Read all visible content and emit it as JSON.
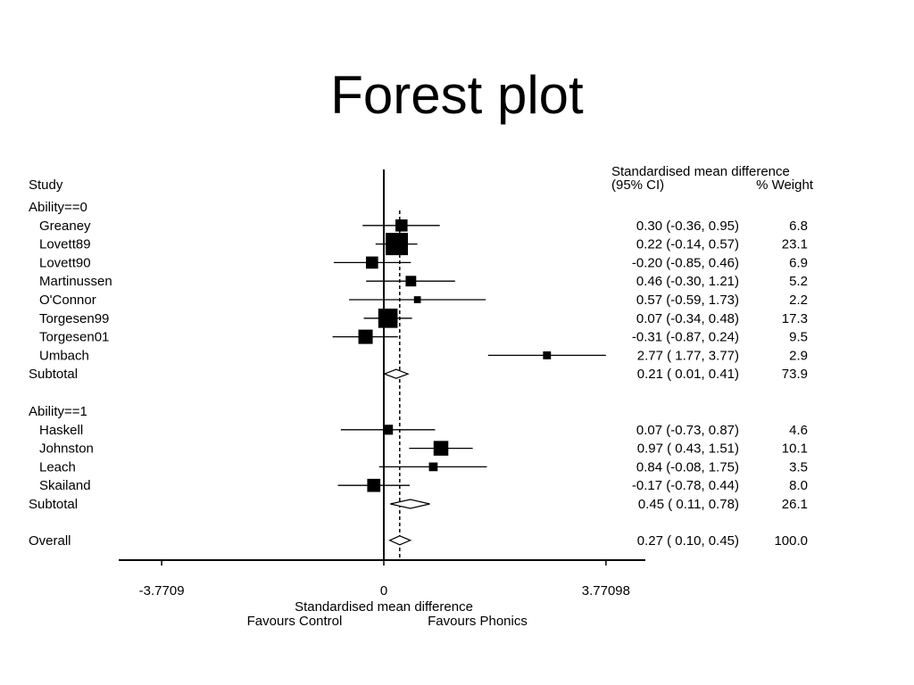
{
  "title": "Forest plot",
  "chart_data": {
    "type": "forest",
    "header": {
      "study": "Study",
      "effect": "Standardised mean difference",
      "ci": "(95% CI)",
      "weight": "% Weight"
    },
    "groups": [
      {
        "label": "Ability==0",
        "studies": [
          {
            "name": "Greaney",
            "est": 0.3,
            "lo": -0.36,
            "hi": 0.95,
            "ci_text": "0.30 (-0.36, 0.95)",
            "weight": "6.8"
          },
          {
            "name": "Lovett89",
            "est": 0.22,
            "lo": -0.14,
            "hi": 0.57,
            "ci_text": "0.22 (-0.14, 0.57)",
            "weight": "23.1"
          },
          {
            "name": "Lovett90",
            "est": -0.2,
            "lo": -0.85,
            "hi": 0.46,
            "ci_text": "-0.20 (-0.85, 0.46)",
            "weight": "6.9"
          },
          {
            "name": "Martinussen",
            "est": 0.46,
            "lo": -0.3,
            "hi": 1.21,
            "ci_text": "0.46 (-0.30, 1.21)",
            "weight": "5.2"
          },
          {
            "name": "O'Connor",
            "est": 0.57,
            "lo": -0.59,
            "hi": 1.73,
            "ci_text": "0.57 (-0.59, 1.73)",
            "weight": "2.2"
          },
          {
            "name": "Torgesen99",
            "est": 0.07,
            "lo": -0.34,
            "hi": 0.48,
            "ci_text": "0.07 (-0.34, 0.48)",
            "weight": "17.3"
          },
          {
            "name": "Torgesen01",
            "est": -0.31,
            "lo": -0.87,
            "hi": 0.24,
            "ci_text": "-0.31 (-0.87, 0.24)",
            "weight": "9.5"
          },
          {
            "name": "Umbach",
            "est": 2.77,
            "lo": 1.77,
            "hi": 3.77,
            "ci_text": "2.77 ( 1.77, 3.77)",
            "weight": "2.9"
          }
        ],
        "subtotal": {
          "name": "Subtotal",
          "est": 0.21,
          "lo": 0.01,
          "hi": 0.41,
          "ci_text": "0.21 ( 0.01, 0.41)",
          "weight": "73.9"
        }
      },
      {
        "label": "Ability==1",
        "studies": [
          {
            "name": "Haskell",
            "est": 0.07,
            "lo": -0.73,
            "hi": 0.87,
            "ci_text": "0.07 (-0.73, 0.87)",
            "weight": "4.6"
          },
          {
            "name": "Johnston",
            "est": 0.97,
            "lo": 0.43,
            "hi": 1.51,
            "ci_text": "0.97 ( 0.43, 1.51)",
            "weight": "10.1"
          },
          {
            "name": "Leach",
            "est": 0.84,
            "lo": -0.08,
            "hi": 1.75,
            "ci_text": "0.84 (-0.08, 1.75)",
            "weight": "3.5"
          },
          {
            "name": "Skailand",
            "est": -0.17,
            "lo": -0.78,
            "hi": 0.44,
            "ci_text": "-0.17 (-0.78, 0.44)",
            "weight": "8.0"
          }
        ],
        "subtotal": {
          "name": "Subtotal",
          "est": 0.45,
          "lo": 0.11,
          "hi": 0.78,
          "ci_text": "0.45 ( 0.11, 0.78)",
          "weight": "26.1"
        }
      }
    ],
    "overall": {
      "name": "Overall",
      "est": 0.27,
      "lo": 0.1,
      "hi": 0.45,
      "ci_text": "0.27 ( 0.10, 0.45)",
      "weight": "100.0"
    },
    "x_ticks": [
      {
        "value": -3.7709,
        "label": "-3.7709"
      },
      {
        "value": 0,
        "label": "0"
      },
      {
        "value": 3.77098,
        "label": "3.77098"
      }
    ],
    "xlim": [
      -4.4,
      4.4
    ],
    "xlabel": "Standardised mean difference",
    "favours_left": "Favours Control",
    "favours_right": "Favours Phonics"
  }
}
